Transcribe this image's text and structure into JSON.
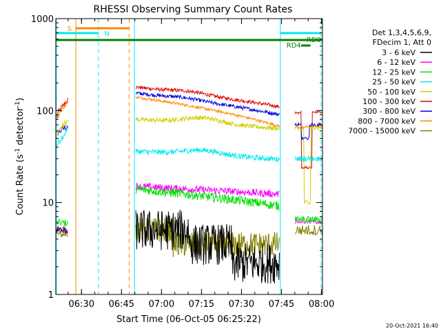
{
  "chart_data": {
    "type": "line",
    "title": "RHESSI Observing Summary Count Rates",
    "xlabel": "Start Time (06-Oct-05 06:25:22)",
    "ylabel_main": "Count Rate (s",
    "ylabel_sup1": "-1",
    "ylabel_mid": " detector",
    "ylabel_sup2": "-1",
    "ylabel_end": ")",
    "yscale": "log",
    "xlim_minutes": [
      0,
      100
    ],
    "ylim": [
      1,
      1000
    ],
    "x_ticks": [
      {
        "m": 9.63,
        "label": "06:30"
      },
      {
        "m": 24.63,
        "label": "06:45"
      },
      {
        "m": 39.63,
        "label": "07:00"
      },
      {
        "m": 54.63,
        "label": "07:15"
      },
      {
        "m": 69.63,
        "label": "07:30"
      },
      {
        "m": 84.63,
        "label": "07:45"
      },
      {
        "m": 99.63,
        "label": "08:00"
      }
    ],
    "y_ticks": [
      {
        "v": 1,
        "label": "1"
      },
      {
        "v": 10,
        "label": "10"
      },
      {
        "v": 100,
        "label": "100"
      },
      {
        "v": 1000,
        "label": "1000"
      }
    ],
    "legend_header": [
      "Det 1,3,4,5,6,9,",
      "FDecim 1, Att 0"
    ],
    "series": [
      {
        "name": "3 - 6 keV",
        "color": "#000000"
      },
      {
        "name": "6 - 12 keV",
        "color": "#ff00ff"
      },
      {
        "name": "12 - 25 keV",
        "color": "#00e000"
      },
      {
        "name": "25 - 50 keV",
        "color": "#00e8f0"
      },
      {
        "name": "50 - 100 keV",
        "color": "#d0d000"
      },
      {
        "name": "100 - 300 keV",
        "color": "#e00000"
      },
      {
        "name": "300 - 800 keV",
        "color": "#0000e0"
      },
      {
        "name": "800 - 7000 keV",
        "color": "#ff8800"
      },
      {
        "name": "7000 - 15000 keV",
        "color": "#808000"
      }
    ],
    "annotations": [
      {
        "text": "S",
        "color": "#ff8800"
      },
      {
        "text": "N",
        "color": "#00e8f0"
      },
      {
        "text": "RD0",
        "color": "#008000"
      },
      {
        "text": "RD4",
        "color": "#008000"
      }
    ],
    "footer_date": "20-Oct-2021 16:40"
  }
}
